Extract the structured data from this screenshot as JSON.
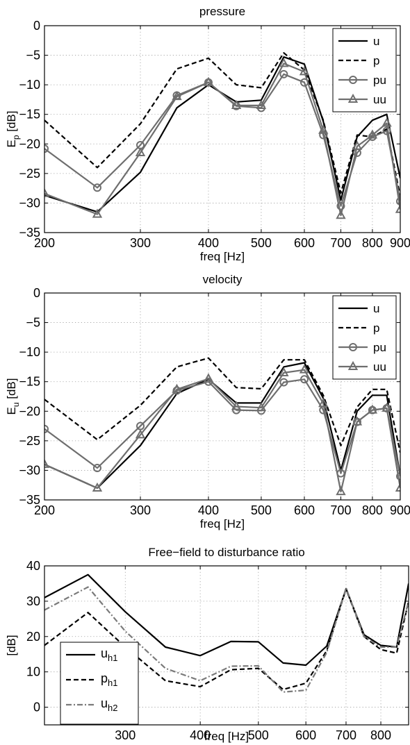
{
  "chart_data": [
    {
      "type": "line",
      "title": "pressure",
      "xlabel": "freq [Hz]",
      "ylabel_main": "E",
      "ylabel_sub": "p",
      "ylabel_unit": "[dB]",
      "xscale": "log",
      "xlim": [
        200,
        900
      ],
      "ylim": [
        -35,
        0
      ],
      "xticks": [
        200,
        300,
        400,
        500,
        600,
        700,
        800,
        900
      ],
      "yticks": [
        0,
        -5,
        -10,
        -15,
        -20,
        -25,
        -30,
        -35
      ],
      "grid": true,
      "legend_position": "top-right",
      "x": [
        200,
        250,
        300,
        350,
        400,
        450,
        500,
        550,
        600,
        650,
        700,
        750,
        800,
        850,
        900
      ],
      "series": [
        {
          "name": "u",
          "color": "#000000",
          "dash": "solid",
          "marker": "none",
          "values": [
            -28.7,
            -31.5,
            -24.8,
            -13.9,
            -10.0,
            -12.9,
            -12.6,
            -5.3,
            -6.5,
            -16.2,
            -29.5,
            -18.8,
            -16.0,
            -15.0,
            -25.8
          ]
        },
        {
          "name": "p",
          "color": "#000000",
          "dash": "dashed",
          "marker": "none",
          "values": [
            -16.0,
            -24.0,
            -16.6,
            -7.3,
            -5.5,
            -10.0,
            -10.5,
            -4.6,
            -7.5,
            -16.0,
            -28.3,
            -18.5,
            -18.8,
            -17.5,
            -28.9
          ]
        },
        {
          "name": "pu",
          "color": "#6e6e6e",
          "dash": "solid",
          "marker": "circle",
          "values": [
            -20.8,
            -27.4,
            -20.2,
            -11.8,
            -9.6,
            -13.6,
            -13.9,
            -8.2,
            -9.6,
            -18.5,
            -30.5,
            -21.5,
            -18.8,
            -17.8,
            -29.7
          ]
        },
        {
          "name": "uu",
          "color": "#6e6e6e",
          "dash": "solid",
          "marker": "triangle",
          "values": [
            -28.4,
            -31.9,
            -21.5,
            -12.0,
            -9.6,
            -13.5,
            -13.5,
            -6.4,
            -7.8,
            -17.7,
            -32.1,
            -20.4,
            -18.5,
            -16.5,
            -31.1
          ]
        }
      ]
    },
    {
      "type": "line",
      "title": "velocity",
      "xlabel": "freq [Hz]",
      "ylabel_main": "E",
      "ylabel_sub": "u",
      "ylabel_unit": "[dB]",
      "xscale": "log",
      "xlim": [
        200,
        900
      ],
      "ylim": [
        -35,
        0
      ],
      "xticks": [
        200,
        300,
        400,
        500,
        600,
        700,
        800,
        900
      ],
      "yticks": [
        0,
        -5,
        -10,
        -15,
        -20,
        -25,
        -30,
        -35
      ],
      "grid": true,
      "legend_position": "top-right",
      "x": [
        200,
        250,
        300,
        350,
        400,
        450,
        500,
        550,
        600,
        650,
        700,
        750,
        800,
        850,
        900
      ],
      "series": [
        {
          "name": "u",
          "color": "#000000",
          "dash": "solid",
          "marker": "none",
          "values": [
            -29.0,
            -33.0,
            -25.8,
            -17.0,
            -14.6,
            -18.6,
            -18.6,
            -12.5,
            -11.8,
            -17.8,
            -30.0,
            -20.0,
            -17.3,
            -17.3,
            -31.0
          ]
        },
        {
          "name": "p",
          "color": "#000000",
          "dash": "dashed",
          "marker": "none",
          "values": [
            -18.0,
            -24.8,
            -19.0,
            -12.5,
            -11.0,
            -16.0,
            -16.2,
            -11.3,
            -11.3,
            -17.3,
            -25.8,
            -19.3,
            -16.3,
            -16.3,
            -27.0
          ]
        },
        {
          "name": "pu",
          "color": "#6e6e6e",
          "dash": "solid",
          "marker": "circle",
          "values": [
            -23.0,
            -29.6,
            -22.5,
            -16.5,
            -15.0,
            -19.8,
            -19.9,
            -15.1,
            -14.6,
            -19.8,
            -30.5,
            -21.8,
            -19.8,
            -19.5,
            -31.0
          ]
        },
        {
          "name": "uu",
          "color": "#6e6e6e",
          "dash": "solid",
          "marker": "triangle",
          "values": [
            -29.0,
            -33.0,
            -24.0,
            -16.3,
            -14.5,
            -19.2,
            -19.4,
            -13.5,
            -13.0,
            -18.7,
            -33.6,
            -21.8,
            -19.8,
            -19.5,
            -33.0
          ]
        }
      ]
    },
    {
      "type": "line",
      "title": "Free−field to disturbance ratio",
      "xlabel": "freq [Hz]",
      "ylabel_unit": "[dB]",
      "xscale": "log",
      "xlim": [
        220,
        890
      ],
      "ylim": [
        -5,
        40
      ],
      "xticks": [
        300,
        400,
        500,
        600,
        700,
        800
      ],
      "yticks": [
        40,
        30,
        20,
        10,
        0
      ],
      "grid": true,
      "legend_position": "bottom-left",
      "x": [
        220,
        260,
        300,
        350,
        400,
        450,
        500,
        550,
        600,
        650,
        700,
        750,
        800,
        850,
        890
      ],
      "series": [
        {
          "name_main": "u",
          "name_sub": "h1",
          "color": "#000000",
          "dash": "solid",
          "values": [
            31.0,
            37.5,
            27.0,
            17.0,
            14.6,
            18.6,
            18.5,
            12.5,
            11.9,
            17.3,
            33.5,
            20.5,
            17.5,
            17.0,
            35.0
          ]
        },
        {
          "name_main": "p",
          "name_sub": "h1",
          "color": "#000000",
          "dash": "dashed",
          "values": [
            17.5,
            26.8,
            17.0,
            7.5,
            5.8,
            10.6,
            11.0,
            5.0,
            6.8,
            16.0,
            33.5,
            20.0,
            16.3,
            15.3,
            30.0
          ]
        },
        {
          "name_main": "u",
          "name_sub": "h2",
          "color": "#7a7a7a",
          "dash": "dashdot",
          "values": [
            27.5,
            34.0,
            21.5,
            11.0,
            7.5,
            11.6,
            11.7,
            4.3,
            4.8,
            15.5,
            33.8,
            20.0,
            17.0,
            17.0,
            30.0
          ]
        }
      ]
    }
  ]
}
